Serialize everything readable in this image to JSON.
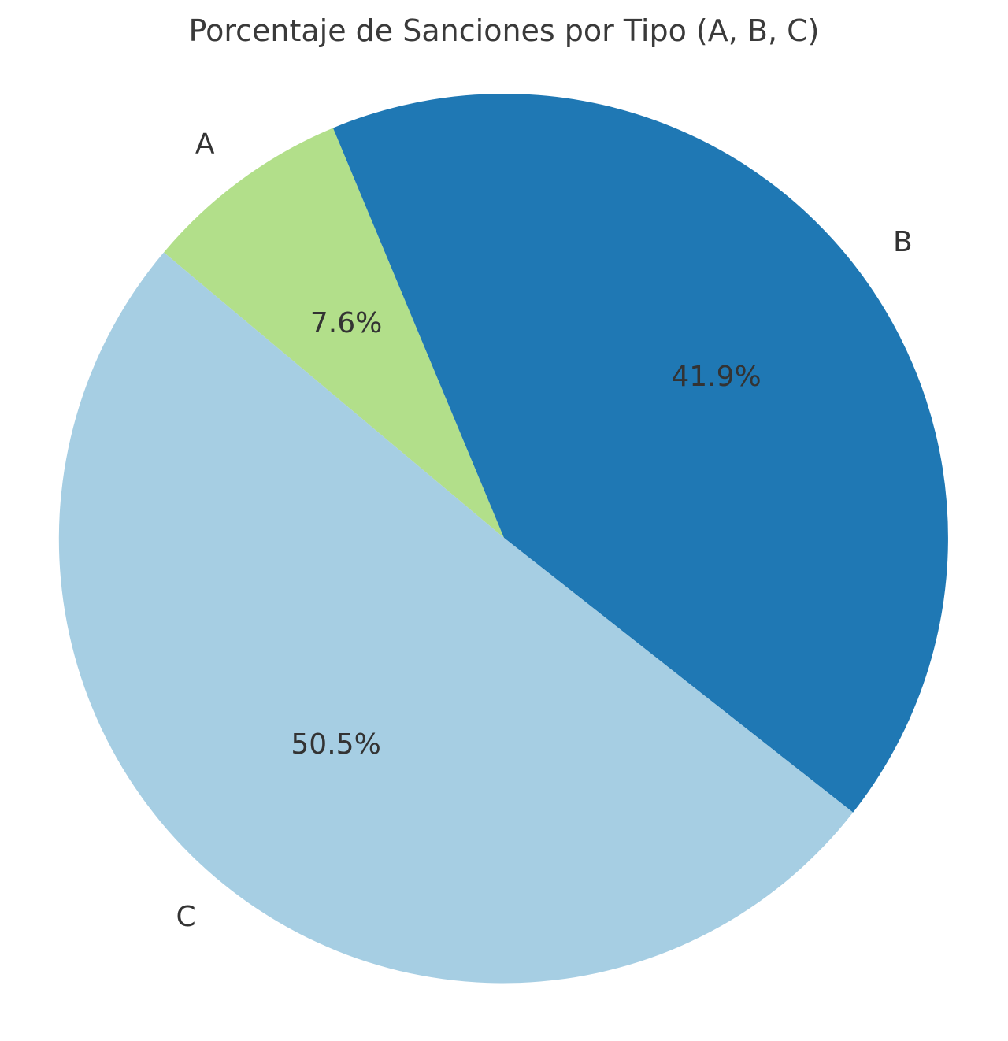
{
  "chart_data": {
    "type": "pie",
    "title": "Porcentaje de Sanciones por Tipo (A, B, C)",
    "labels": [
      "A",
      "B",
      "C"
    ],
    "values": [
      7.6,
      41.9,
      50.5
    ],
    "pct_labels": [
      "7.6%",
      "41.9%",
      "50.5%"
    ],
    "colors": [
      "#b2df8a",
      "#1f78b4",
      "#a6cee3"
    ],
    "start_angle_deg": 140,
    "clockwise": true,
    "pct_distance": 0.6,
    "label_distance": 1.1,
    "legend": "none",
    "background_color": "#ffffff",
    "text_color": "#3a3a3a"
  }
}
